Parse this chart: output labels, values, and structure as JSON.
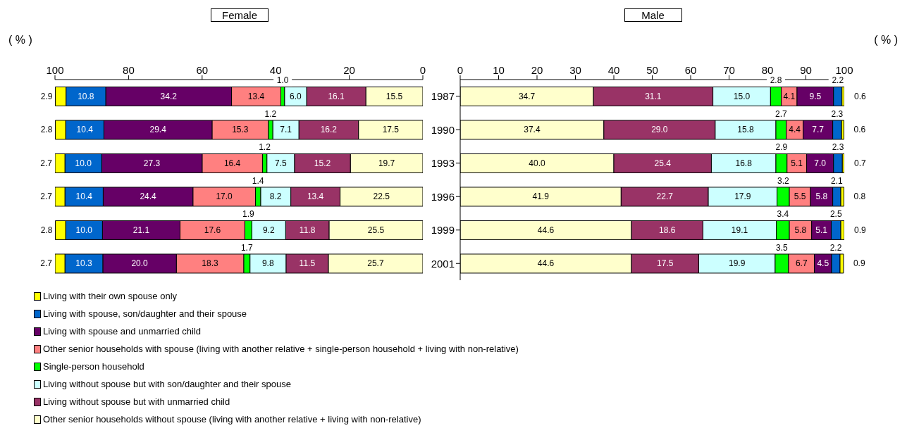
{
  "chart_data": [
    {
      "type": "bar",
      "orientation": "horizontal",
      "stacked": true,
      "title": "Female",
      "xlabel": "( % )",
      "categories": [
        "1987",
        "1990",
        "1993",
        "1996",
        "1999",
        "2001"
      ],
      "tick_labels": "x",
      "xlim": [
        100,
        0
      ],
      "xticks": [
        100,
        80,
        60,
        40,
        20,
        0
      ],
      "legend": "bottom",
      "series": [
        {
          "name": "Other senior households without spouse (living with another relative + living with non-relative)",
          "color": "#ffffcc",
          "values": [
            15.5,
            17.5,
            19.7,
            22.5,
            25.5,
            25.7
          ],
          "value_labels": [
            "15.5",
            "17.5",
            "19.7",
            "22.5",
            "25.5",
            "25.7"
          ]
        },
        {
          "name": "Living without spouse but with unmarried child",
          "color": "#993366",
          "values": [
            16.1,
            16.2,
            15.2,
            13.4,
            11.8,
            11.5
          ],
          "value_labels": [
            "16.1",
            "16.2",
            "15.2",
            "13.4",
            "11.8",
            "11.5"
          ]
        },
        {
          "name": "Living without spouse but with son/daughter and their spouse",
          "color": "#ccffff",
          "values": [
            6.0,
            7.1,
            7.5,
            8.2,
            9.2,
            9.8
          ],
          "value_labels": [
            "6.0",
            "7.1",
            "7.5",
            "8.2",
            "9.2",
            "9.8"
          ]
        },
        {
          "name": "Single-person  household",
          "color": "#00ff00",
          "values": [
            1.0,
            1.2,
            1.2,
            1.4,
            1.9,
            1.7
          ],
          "value_labels": [
            "1.0",
            "1.2",
            "1.2",
            "1.4",
            "1.9",
            "1.7"
          ]
        },
        {
          "name": "Other senior households with spouse (living with another relative + single-person household + living with non-relative)",
          "color": "#ff8080",
          "values": [
            13.4,
            15.3,
            16.4,
            17.0,
            17.6,
            18.3
          ],
          "value_labels": [
            "13.4",
            "15.3",
            "16.4",
            "17.0",
            "17.6",
            "18.3"
          ]
        },
        {
          "name": "Living with spouse and unmarried child",
          "color": "#660066",
          "values": [
            34.2,
            29.4,
            27.3,
            24.4,
            21.1,
            20.0
          ],
          "value_labels": [
            "34.2",
            "29.4",
            "27.3",
            "24.4",
            "21.1",
            "20.0"
          ]
        },
        {
          "name": "Living with spouse, son/daughter and their spouse",
          "color": "#0066cc",
          "values": [
            10.8,
            10.4,
            10.0,
            10.4,
            10.0,
            10.3
          ],
          "value_labels": [
            "10.8",
            "10.4",
            "10.0",
            "10.4",
            "10.0",
            "10.3"
          ]
        },
        {
          "name": "Living with their own spouse only",
          "color": "#ffff00",
          "values": [
            2.9,
            2.8,
            2.7,
            2.7,
            2.8,
            2.7
          ],
          "value_labels": [
            "2.9",
            "2.8",
            "2.7",
            "2.7",
            "2.8",
            "2.7"
          ]
        }
      ]
    },
    {
      "type": "bar",
      "orientation": "horizontal",
      "stacked": true,
      "title": "Male",
      "xlabel": "( % )",
      "categories": [
        "1987",
        "1990",
        "1993",
        "1996",
        "1999",
        "2001"
      ],
      "xlim": [
        0,
        100
      ],
      "xticks": [
        0,
        10,
        20,
        30,
        40,
        50,
        60,
        70,
        80,
        90,
        100
      ],
      "series": [
        {
          "color": "#ffffcc",
          "values": [
            34.7,
            37.4,
            40.0,
            41.9,
            44.6,
            44.6
          ],
          "value_labels": [
            "34.7",
            "37.4",
            "40.0",
            "41.9",
            "44.6",
            "44.6"
          ]
        },
        {
          "color": "#993366",
          "values": [
            31.1,
            29.0,
            25.4,
            22.7,
            18.6,
            17.5
          ],
          "value_labels": [
            "31.1",
            "29.0",
            "25.4",
            "22.7",
            "18.6",
            "17.5"
          ]
        },
        {
          "color": "#ccffff",
          "values": [
            15.0,
            15.8,
            16.8,
            17.9,
            19.1,
            19.9
          ],
          "value_labels": [
            "15.0",
            "15.8",
            "16.8",
            "17.9",
            "19.1",
            "19.9"
          ]
        },
        {
          "color": "#00ff00",
          "values": [
            2.8,
            2.7,
            2.9,
            3.2,
            3.4,
            3.5
          ],
          "value_labels": [
            "2.8",
            "2.7",
            "2.9",
            "3.2",
            "3.4",
            "3.5"
          ]
        },
        {
          "color": "#ff8080",
          "values": [
            4.1,
            4.4,
            5.1,
            5.5,
            5.8,
            6.7
          ],
          "value_labels": [
            "4.1",
            "4.4",
            "5.1",
            "5.5",
            "5.8",
            "6.7"
          ]
        },
        {
          "color": "#660066",
          "values": [
            9.5,
            7.7,
            7.0,
            5.8,
            5.1,
            4.5
          ],
          "value_labels": [
            "9.5",
            "7.7",
            "7.0",
            "5.8",
            "5.1",
            "4.5"
          ]
        },
        {
          "color": "#0066cc",
          "values": [
            2.2,
            2.3,
            2.3,
            2.1,
            2.5,
            2.2
          ],
          "value_labels": [
            "2.2",
            "2.3",
            "2.3",
            "2.1",
            "2.5",
            "2.2"
          ]
        },
        {
          "color": "#ffff00",
          "values": [
            0.6,
            0.6,
            0.7,
            0.8,
            0.9,
            0.9
          ],
          "value_labels": [
            "0.6",
            "0.6",
            "0.7",
            "0.8",
            "0.9",
            "0.9"
          ]
        }
      ]
    }
  ]
}
